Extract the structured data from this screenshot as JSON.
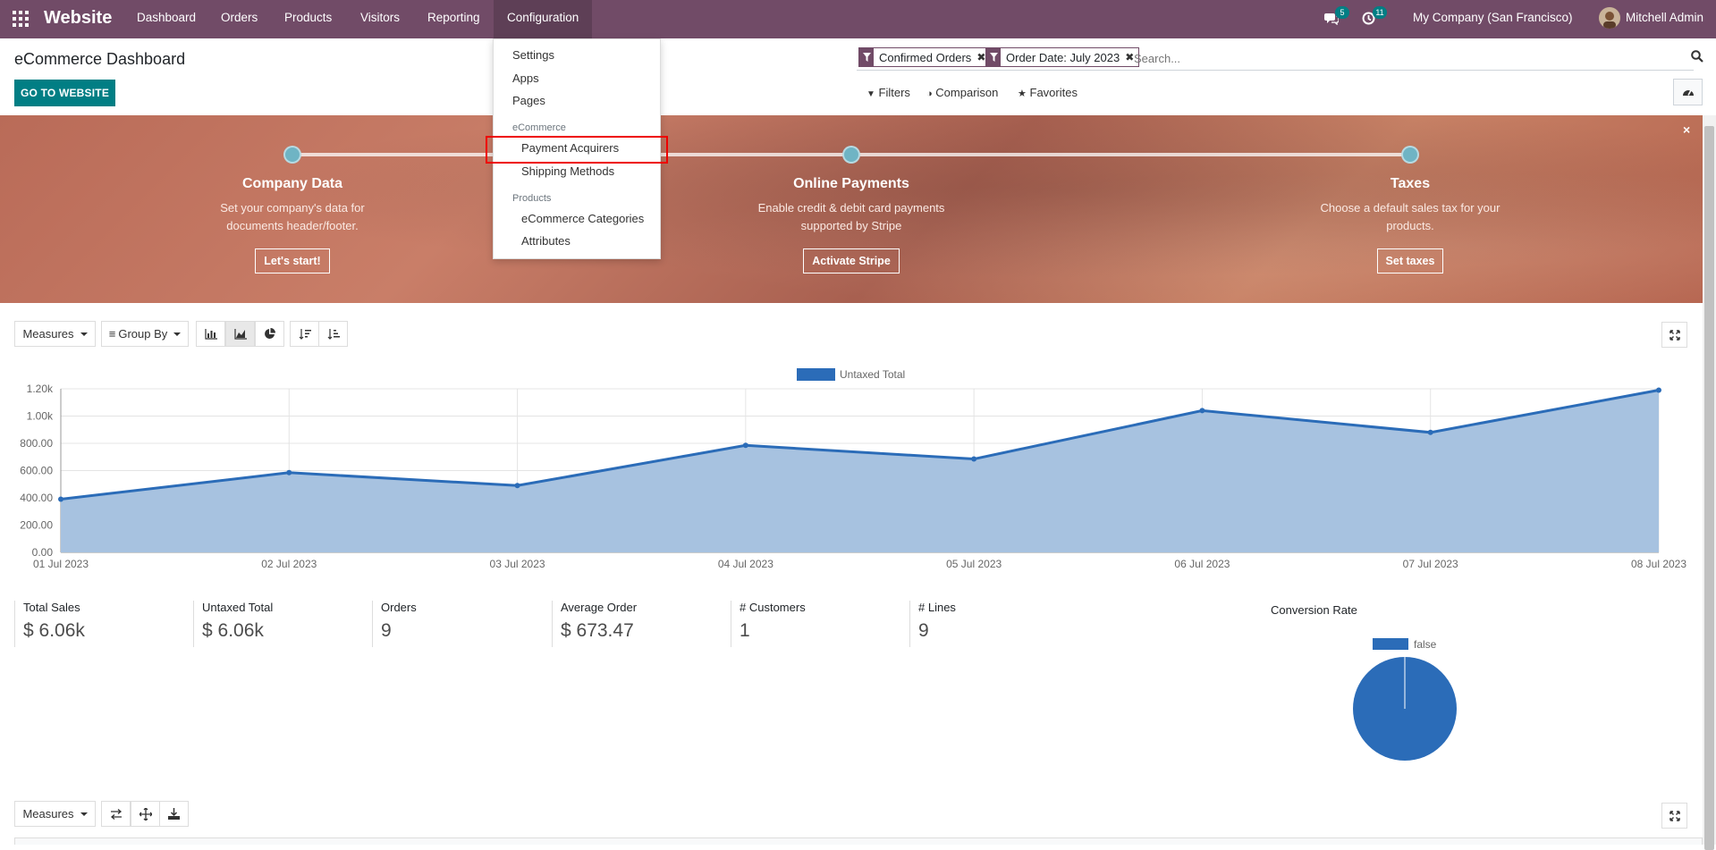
{
  "navbar": {
    "brand": "Website",
    "menu": [
      "Dashboard",
      "Orders",
      "Products",
      "Visitors",
      "Reporting",
      "Configuration"
    ],
    "active_menu": "Configuration",
    "messages_count": "5",
    "activities_count": "11",
    "company": "My Company (San Francisco)",
    "user": "Mitchell Admin"
  },
  "control_panel": {
    "title": "eCommerce Dashboard",
    "go_button": "GO TO WEBSITE",
    "facets": [
      "Confirmed Orders",
      "Order Date: July 2023"
    ],
    "search_placeholder": "Search...",
    "filters_label": "Filters",
    "comparison_label": "Comparison",
    "favorites_label": "Favorites"
  },
  "config_menu": {
    "items_top": [
      "Settings",
      "Apps",
      "Pages"
    ],
    "section_ecommerce": "eCommerce",
    "ecommerce_items": [
      "Payment Acquirers",
      "Shipping Methods"
    ],
    "section_products": "Products",
    "product_items": [
      "eCommerce Categories",
      "Attributes"
    ]
  },
  "onboarding": {
    "steps": [
      {
        "title": "Company Data",
        "line1": "Set your company's data for",
        "line2": "documents header/footer.",
        "button": "Let's start!"
      },
      {
        "title": "Online Payments",
        "line1": "Enable credit & debit card payments",
        "line2": "supported by Stripe",
        "button": "Activate Stripe"
      },
      {
        "title": "Taxes",
        "line1": "Choose a default sales tax for your",
        "line2": "products.",
        "button": "Set taxes"
      }
    ],
    "close_icon": "×"
  },
  "graph_toolbar": {
    "measures": "Measures",
    "group_by": "Group By"
  },
  "chart_data": {
    "type": "area",
    "legend": [
      "Untaxed Total"
    ],
    "categories": [
      "01 Jul 2023",
      "02 Jul 2023",
      "03 Jul 2023",
      "04 Jul 2023",
      "05 Jul 2023",
      "06 Jul 2023",
      "07 Jul 2023",
      "08 Jul 2023"
    ],
    "series": [
      {
        "name": "Untaxed Total",
        "values": [
          390,
          585,
          490,
          785,
          685,
          1040,
          880,
          1190
        ]
      }
    ],
    "yticks": [
      "0.00",
      "200.00",
      "400.00",
      "600.00",
      "800.00",
      "1.00k",
      "1.20k"
    ],
    "ylim": [
      0,
      1200
    ],
    "grid": true,
    "legend_position": "top-center",
    "color": "#2b6cb8",
    "fill_color": "#a7c2e0"
  },
  "kpis": [
    {
      "label": "Total Sales",
      "value": "$ 6.06k"
    },
    {
      "label": "Untaxed Total",
      "value": "$ 6.06k"
    },
    {
      "label": "Orders",
      "value": "9"
    },
    {
      "label": "Average Order",
      "value": "$ 673.47"
    },
    {
      "label": "# Customers",
      "value": "1"
    },
    {
      "label": "# Lines",
      "value": "9"
    }
  ],
  "conversion": {
    "label": "Conversion Rate",
    "legend": "false",
    "color": "#2b6cb8"
  },
  "pivot_toolbar": {
    "measures": "Measures"
  }
}
